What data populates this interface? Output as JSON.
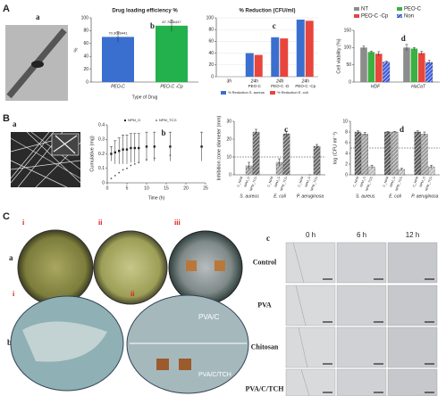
{
  "chart_data": [
    {
      "type": "bar",
      "panel": "b",
      "title": "Drug loading efficiency %",
      "y_label": "%",
      "x_label": "Type of Drug",
      "categories": [
        "PEO-C",
        "PEO-C -Cp"
      ],
      "values": [
        70.3089441,
        87.7686447
      ],
      "errors": [
        8,
        9
      ],
      "value_labels": [
        "70.3089441",
        "87.7686447"
      ],
      "colors": [
        "#3a6fd0",
        "#22b14c"
      ],
      "ylim": [
        0,
        100
      ],
      "yticks": [
        0,
        20,
        40,
        60,
        80,
        100
      ]
    },
    {
      "type": "bar",
      "panel": "c",
      "title": "% Reduction (CFU/ml)",
      "categories": [
        "3h",
        "24h",
        "24h",
        "24h"
      ],
      "sub_labels": [
        null,
        "PEO-C",
        "PEO-C -D",
        "PEO-C -Cp"
      ],
      "series": [
        {
          "name": "% Reduction S. aureus",
          "color": "#3a6fd0",
          "values": [
            0,
            40,
            67,
            97
          ]
        },
        {
          "name": "% Reduction E. coli",
          "color": "#e8453c",
          "values": [
            0,
            37,
            65,
            95
          ]
        }
      ],
      "ylim": [
        0,
        100
      ],
      "yticks": [
        0,
        20,
        40,
        60,
        80,
        100
      ],
      "grid": true,
      "legend": "bottom"
    },
    {
      "type": "bar",
      "panel": "d",
      "y_label": "Cell viability (%)",
      "categories": [
        "HDF",
        "HaCaT"
      ],
      "series": [
        {
          "name": "NT",
          "color": "#8c8c8c",
          "values": [
            100,
            100
          ],
          "errors": [
            4,
            9
          ]
        },
        {
          "name": "PEO-C",
          "color": "#3cb043",
          "values": [
            87,
            97
          ],
          "errors": [
            3,
            3
          ]
        },
        {
          "name": "PEO-C -Cp",
          "color": "#e8453c",
          "values": [
            82,
            84
          ],
          "errors": [
            6,
            5
          ]
        },
        {
          "name": "Non",
          "color": "#3b5bdb",
          "values": [
            58,
            57
          ],
          "errors": [
            3,
            6
          ],
          "hatch": true
        }
      ],
      "ylim": [
        0,
        150
      ],
      "yticks": [
        0,
        50,
        100,
        150
      ],
      "legend": "top"
    },
    {
      "type": "scatter",
      "panel": "b",
      "y_label": "Cumulative (mg)",
      "x_label": "Time (h)",
      "x": [
        1,
        2,
        3,
        4,
        5,
        6,
        7,
        8,
        10,
        12,
        16,
        24
      ],
      "series": [
        {
          "name": "NPM_G",
          "color": "#222",
          "values": [
            0.2,
            0.21,
            0.22,
            0.23,
            0.23,
            0.24,
            0.24,
            0.24,
            0.25,
            0.25,
            0.25,
            0.25
          ],
          "errors": [
            0.05,
            0.08,
            0.09,
            0.1,
            0.1,
            0.1,
            0.1,
            0.1,
            0.1,
            0.1,
            0.1,
            0.1
          ]
        },
        {
          "name": "NPM_TCG",
          "color": "#555",
          "values": [
            0.03,
            0.05,
            0.07,
            0.09,
            0.1,
            0.12,
            0.13,
            0.14,
            0.16,
            0.17,
            0.19,
            null
          ]
        }
      ],
      "xlim": [
        0,
        25
      ],
      "xticks": [
        0,
        5,
        10,
        15,
        20,
        25
      ],
      "ylim": [
        0,
        0.4
      ],
      "yticks": [
        0,
        0.1,
        0.2,
        0.3,
        0.4
      ],
      "legend": "top"
    },
    {
      "type": "bar",
      "panel": "c",
      "y_label": "Inhibition zone diameter (mm)",
      "categories": [
        "S. aureus",
        "E. coli",
        "P. aeruginosa"
      ],
      "series": [
        {
          "name": "C_NPM",
          "color": "#bbb",
          "values": [
            0,
            0,
            0
          ],
          "hatch": true
        },
        {
          "name": "NPM_G",
          "color": "#999",
          "values": [
            5,
            7,
            0
          ],
          "errors": [
            2,
            2,
            0
          ],
          "hatch": true
        },
        {
          "name": "NPM_TCG",
          "color": "#666",
          "values": [
            24,
            23,
            16
          ],
          "errors": [
            1.5,
            1.5,
            1
          ],
          "hatch": true
        }
      ],
      "ylim": [
        0,
        30
      ],
      "yticks": [
        0,
        10,
        20,
        30
      ],
      "reference": 10,
      "legend": "under-bars"
    },
    {
      "type": "bar",
      "panel": "d",
      "y_label": "log (CFU ml⁻¹)",
      "categories": [
        "S. aureus",
        "E. coli",
        "P. aeruginosa"
      ],
      "series": [
        {
          "name": "C_NPM",
          "color": "#555",
          "values": [
            8,
            8,
            8
          ],
          "errors": [
            0.2,
            0.1,
            0.2
          ],
          "hatch": true
        },
        {
          "name": "NPM_G",
          "color": "#999",
          "values": [
            7.6,
            8,
            7.6
          ],
          "errors": [
            0.3,
            0.1,
            0.4
          ],
          "hatch": true
        },
        {
          "name": "NPM_TCG",
          "color": "#bbb",
          "values": [
            1.5,
            1,
            1.5
          ],
          "errors": [
            0.3,
            0.2,
            0.3
          ],
          "hatch": true
        }
      ],
      "ylim": [
        0,
        10
      ],
      "yticks": [
        0,
        2,
        4,
        6,
        8,
        10
      ],
      "reference": 5,
      "legend": "under-bars"
    }
  ],
  "panels": {
    "A": "A",
    "B": "B",
    "C": "C",
    "Aa": "a",
    "Ba": "a",
    "Ca": "a",
    "Cb": "b",
    "Cc": "c",
    "dishes_a": [
      "i",
      "ii",
      "iii"
    ],
    "dishes_b": [
      "i",
      "ii"
    ],
    "dish_labels": [
      "PVA/C",
      "PVA/C/TCH"
    ],
    "times": [
      "0 h",
      "6 h",
      "12 h"
    ],
    "rows": [
      "Control",
      "PVA",
      "Chitosan",
      "PVA/C/TCH"
    ]
  }
}
